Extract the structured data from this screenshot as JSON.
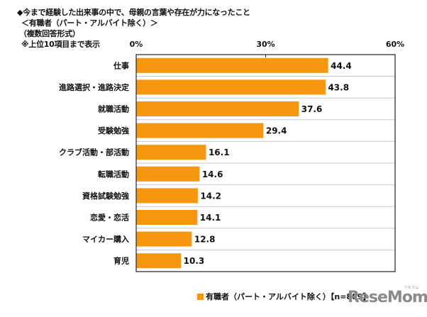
{
  "chart_data": {
    "type": "bar",
    "orientation": "horizontal",
    "title_lines": [
      "◆今まで経験した出来事の中で、母親の言葉や存在が力になったこと",
      "＜有職者（パート・アルバイト除く）＞",
      "（複数回答形式）",
      "※上位10項目まで表示"
    ],
    "categories": [
      "仕事",
      "進路選択・進路決定",
      "就職活動",
      "受験勉強",
      "クラブ活動・部活動",
      "転職活動",
      "資格試験勉強",
      "恋愛・恋活",
      "マイカー購入",
      "育児"
    ],
    "series": [
      {
        "name": "有職者（パート・アルバイト除く）【n=889】",
        "color": "#F7960F",
        "values": [
          44.4,
          43.8,
          37.6,
          29.4,
          16.1,
          14.6,
          14.2,
          14.1,
          12.8,
          10.3
        ]
      }
    ],
    "value_labels": [
      "44.4",
      "43.8",
      "37.6",
      "29.4",
      "16.1",
      "14.6",
      "14.2",
      "14.1",
      "12.8",
      "10.3"
    ],
    "xlim": [
      0,
      60
    ],
    "xticks": [
      0,
      30,
      60
    ],
    "xtick_labels": [
      "0%",
      "30%",
      "60%"
    ],
    "xlabel": "",
    "ylabel": "",
    "grid": "horizontal separators between categories",
    "legend_position": "bottom-right"
  },
  "legend": {
    "label": "有職者（パート・アルバイト除く）【n=889】",
    "color": "#F7960F"
  },
  "watermark": {
    "text": "ReseMom",
    "sub": "リセマム"
  }
}
